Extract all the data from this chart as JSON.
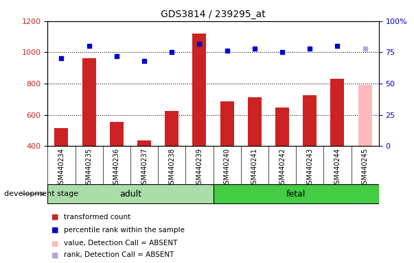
{
  "title": "GDS3814 / 239295_at",
  "samples": [
    "GSM440234",
    "GSM440235",
    "GSM440236",
    "GSM440237",
    "GSM440238",
    "GSM440239",
    "GSM440240",
    "GSM440241",
    "GSM440242",
    "GSM440243",
    "GSM440244",
    "GSM440245"
  ],
  "bar_values": [
    515,
    960,
    555,
    435,
    625,
    1120,
    685,
    710,
    645,
    725,
    830,
    790
  ],
  "bar_colors": [
    "#cc2222",
    "#cc2222",
    "#cc2222",
    "#cc2222",
    "#cc2222",
    "#cc2222",
    "#cc2222",
    "#cc2222",
    "#cc2222",
    "#cc2222",
    "#cc2222",
    "#ffbbbb"
  ],
  "dot_values": [
    70,
    80,
    72,
    68,
    75,
    82,
    76,
    78,
    75,
    78,
    80,
    78
  ],
  "dot_colors": [
    "#0000cc",
    "#0000cc",
    "#0000cc",
    "#0000cc",
    "#0000cc",
    "#0000cc",
    "#0000cc",
    "#0000cc",
    "#0000cc",
    "#0000cc",
    "#0000cc",
    "#aaaadd"
  ],
  "ylim_left": [
    400,
    1200
  ],
  "ylim_right": [
    0,
    100
  ],
  "yticks_left": [
    400,
    600,
    800,
    1000,
    1200
  ],
  "yticks_right": [
    0,
    25,
    50,
    75,
    100
  ],
  "yticklabels_right": [
    "0",
    "25",
    "50",
    "75",
    "100%"
  ],
  "adult_color": "#aaddaa",
  "fetal_color": "#44cc44",
  "legend_items": [
    {
      "label": "transformed count",
      "color": "#cc2222"
    },
    {
      "label": "percentile rank within the sample",
      "color": "#0000cc"
    },
    {
      "label": "value, Detection Call = ABSENT",
      "color": "#ffbbbb"
    },
    {
      "label": "rank, Detection Call = ABSENT",
      "color": "#aaaadd"
    }
  ],
  "bar_width": 0.5,
  "tick_bg_color": "#cccccc",
  "group_border_color": "#000000"
}
